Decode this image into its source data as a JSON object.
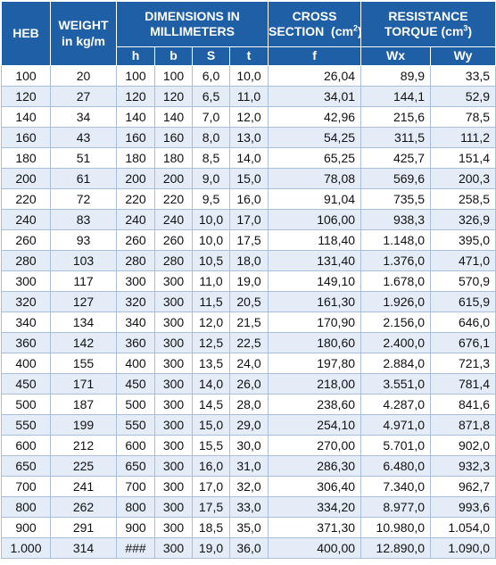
{
  "header": {
    "heb": "HEB",
    "weight": "WEIGHT",
    "weight_unit": "in kg/m",
    "dimensions": "DIMENSIONS IN MILLIMETERS",
    "cross": "CROSS",
    "section": "SECTION",
    "section_unit": "(cm",
    "section_exp": "2",
    "section_close": ")",
    "resistance": "RESISTANCE",
    "torque": "TORQUE",
    "torque_unit": "(cm",
    "torque_exp": "3",
    "torque_close": ")",
    "sub": [
      "h",
      "b",
      "S",
      "t",
      "f",
      "Wx",
      "Wy"
    ]
  },
  "rows": [
    [
      "100",
      "20",
      "100",
      "100",
      "6,0",
      "10,0",
      "26,04",
      "89,9",
      "33,5"
    ],
    [
      "120",
      "27",
      "120",
      "120",
      "6,5",
      "11,0",
      "34,01",
      "144,1",
      "52,9"
    ],
    [
      "140",
      "34",
      "140",
      "140",
      "7,0",
      "12,0",
      "42,96",
      "215,6",
      "78,5"
    ],
    [
      "160",
      "43",
      "160",
      "160",
      "8,0",
      "13,0",
      "54,25",
      "311,5",
      "111,2"
    ],
    [
      "180",
      "51",
      "180",
      "180",
      "8,5",
      "14,0",
      "65,25",
      "425,7",
      "151,4"
    ],
    [
      "200",
      "61",
      "200",
      "200",
      "9,0",
      "15,0",
      "78,08",
      "569,6",
      "200,3"
    ],
    [
      "220",
      "72",
      "220",
      "220",
      "9,5",
      "16,0",
      "91,04",
      "735,5",
      "258,5"
    ],
    [
      "240",
      "83",
      "240",
      "240",
      "10,0",
      "17,0",
      "106,00",
      "938,3",
      "326,9"
    ],
    [
      "260",
      "93",
      "260",
      "260",
      "10,0",
      "17,5",
      "118,40",
      "1.148,0",
      "395,0"
    ],
    [
      "280",
      "103",
      "280",
      "280",
      "10,5",
      "18,0",
      "131,40",
      "1.376,0",
      "471,0"
    ],
    [
      "300",
      "117",
      "300",
      "300",
      "11,0",
      "19,0",
      "149,10",
      "1.678,0",
      "570,9"
    ],
    [
      "320",
      "127",
      "320",
      "300",
      "11,5",
      "20,5",
      "161,30",
      "1.926,0",
      "615,9"
    ],
    [
      "340",
      "134",
      "340",
      "300",
      "12,0",
      "21,5",
      "170,90",
      "2.156,0",
      "646,0"
    ],
    [
      "360",
      "142",
      "360",
      "300",
      "12,5",
      "22,5",
      "180,60",
      "2.400,0",
      "676,1"
    ],
    [
      "400",
      "155",
      "400",
      "300",
      "13,5",
      "24,0",
      "197,80",
      "2.884,0",
      "721,3"
    ],
    [
      "450",
      "171",
      "450",
      "300",
      "14,0",
      "26,0",
      "218,00",
      "3.551,0",
      "781,4"
    ],
    [
      "500",
      "187",
      "500",
      "300",
      "14,5",
      "28,0",
      "238,60",
      "4.287,0",
      "841,6"
    ],
    [
      "550",
      "199",
      "550",
      "300",
      "15,0",
      "29,0",
      "254,10",
      "4.971,0",
      "871,8"
    ],
    [
      "600",
      "212",
      "600",
      "300",
      "15,5",
      "30,0",
      "270,00",
      "5.701,0",
      "902,0"
    ],
    [
      "650",
      "225",
      "650",
      "300",
      "16,0",
      "31,0",
      "286,30",
      "6.480,0",
      "932,3"
    ],
    [
      "700",
      "241",
      "700",
      "300",
      "17,0",
      "32,0",
      "306,40",
      "7.340,0",
      "962,7"
    ],
    [
      "800",
      "262",
      "800",
      "300",
      "17,5",
      "33,0",
      "334,20",
      "8.977,0",
      "993,6"
    ],
    [
      "900",
      "291",
      "900",
      "300",
      "18,5",
      "35,0",
      "371,30",
      "10.980,0",
      "1.054,0"
    ],
    [
      "1.000",
      "314",
      "###",
      "300",
      "19,0",
      "36,0",
      "400,00",
      "12.890,0",
      "1.090,0"
    ]
  ]
}
